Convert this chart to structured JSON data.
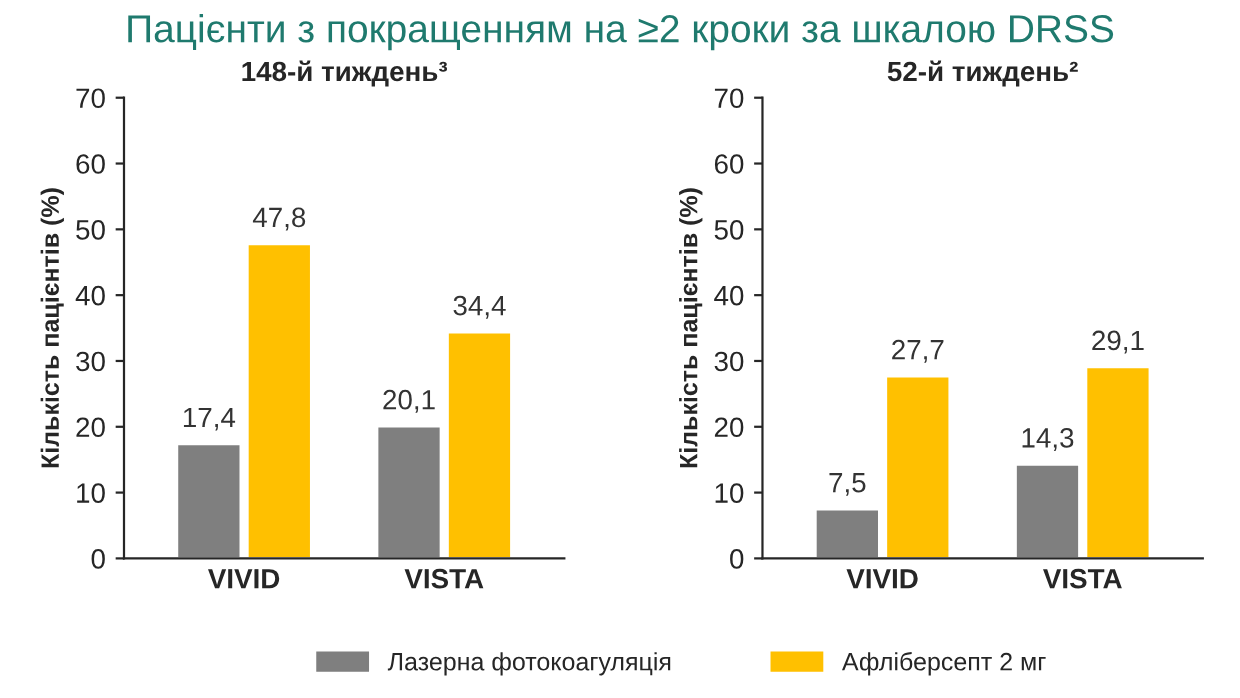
{
  "chart_data": [
    {
      "type": "bar",
      "title": "Пацієнти з покращенням на ≥2 кроки за шкалою DRSS",
      "subtitle": "148-й тиждень³",
      "ylabel": "Кількість пацієнтів (%)",
      "categories": [
        "VIVID",
        "VISTA"
      ],
      "ylim": [
        0,
        70
      ],
      "yticks": [
        0,
        10,
        20,
        30,
        40,
        50,
        60,
        70
      ],
      "grid": false,
      "legend": "bottom",
      "series": [
        {
          "name": "Лазерна фотокоагуляція",
          "color": "#7f7f7f",
          "values": [
            17.4,
            20.1
          ],
          "value_labels": [
            "17,4",
            "20,1"
          ]
        },
        {
          "name": "Афліберсепт 2 мг",
          "color": "#ffc000",
          "values": [
            47.8,
            34.4
          ],
          "value_labels": [
            "47,8",
            "34,4"
          ]
        }
      ]
    },
    {
      "type": "bar",
      "subtitle": "52-й тиждень²",
      "ylabel": "Кількість пацієнтів (%)",
      "categories": [
        "VIVID",
        "VISTA"
      ],
      "ylim": [
        0,
        70
      ],
      "yticks": [
        0,
        10,
        20,
        30,
        40,
        50,
        60,
        70
      ],
      "grid": false,
      "series": [
        {
          "color": "#7f7f7f",
          "values": [
            7.5,
            14.3
          ],
          "value_labels": [
            "7,5",
            "14,3"
          ]
        },
        {
          "color": "#ffc000",
          "values": [
            27.7,
            29.1
          ],
          "value_labels": [
            "27,7",
            "29,1"
          ]
        }
      ]
    }
  ]
}
